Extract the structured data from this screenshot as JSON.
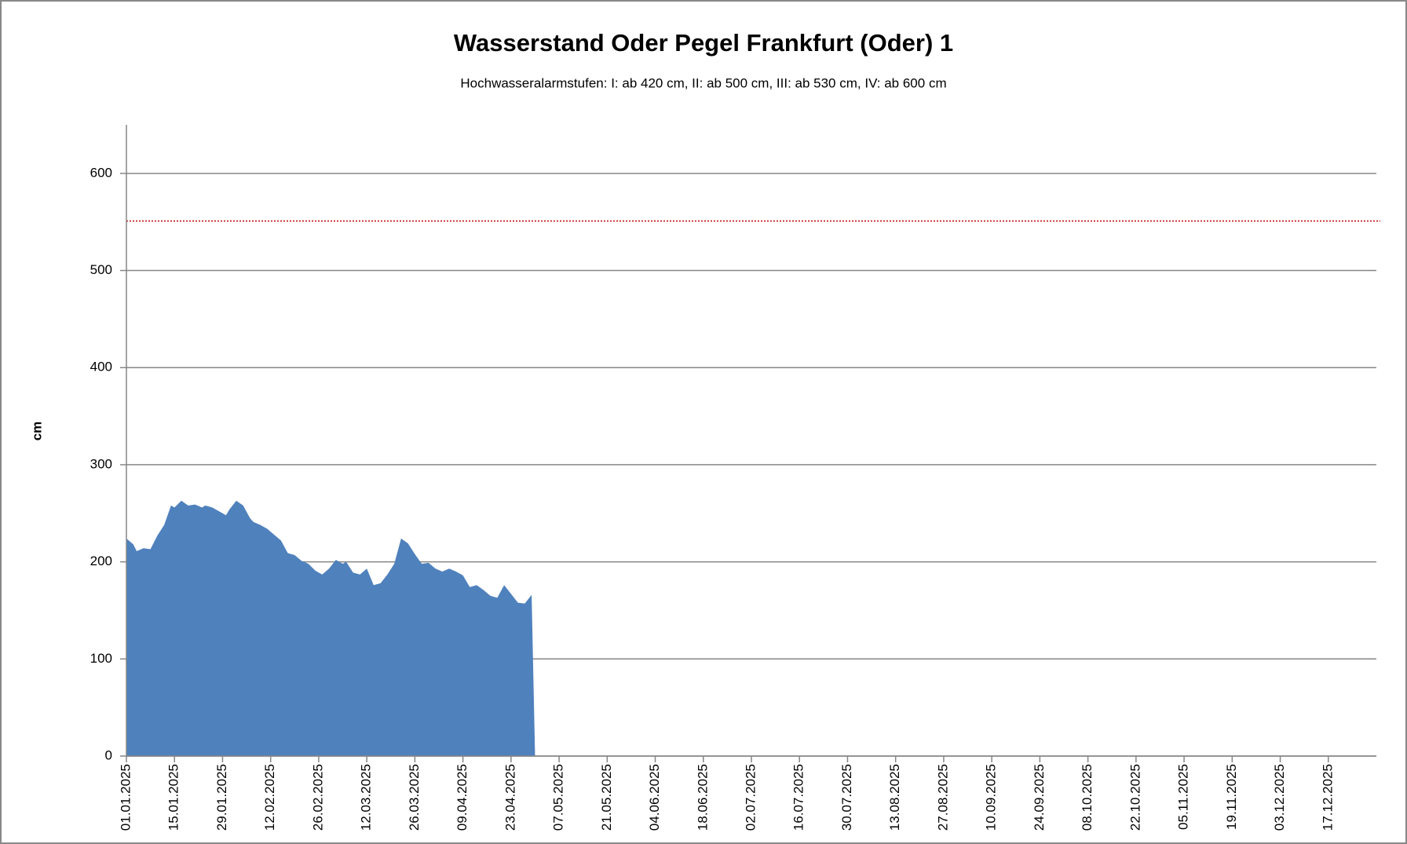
{
  "chart_data": {
    "type": "area",
    "title": "Wasserstand Oder Pegel Frankfurt (Oder) 1",
    "subtitle": "Hochwasseralarmstufen: I: ab 420 cm, II: ab 500 cm, III: ab 530 cm,  IV: ab 600 cm",
    "ylabel": "cm",
    "x": [
      "01.01.2025",
      "03.01.2025",
      "04.01.2025",
      "06.01.2025",
      "08.01.2025",
      "10.01.2025",
      "12.01.2025",
      "14.01.2025",
      "15.01.2025",
      "17.01.2025",
      "19.01.2025",
      "21.01.2025",
      "23.01.2025",
      "24.01.2025",
      "26.01.2025",
      "28.01.2025",
      "30.01.2025",
      "31.01.2025",
      "02.02.2025",
      "04.02.2025",
      "06.02.2025",
      "07.02.2025",
      "09.02.2025",
      "11.02.2025",
      "13.02.2025",
      "15.02.2025",
      "17.02.2025",
      "19.02.2025",
      "21.02.2025",
      "23.02.2025",
      "25.02.2025",
      "27.02.2025",
      "01.03.2025",
      "03.03.2025",
      "05.03.2025",
      "06.03.2025",
      "08.03.2025",
      "10.03.2025",
      "12.03.2025",
      "14.03.2025",
      "16.03.2025",
      "18.03.2025",
      "20.03.2025",
      "22.03.2025",
      "24.03.2025",
      "26.03.2025",
      "28.03.2025",
      "30.03.2025",
      "01.04.2025",
      "03.04.2025",
      "05.04.2025",
      "07.04.2025",
      "09.04.2025",
      "11.04.2025",
      "13.04.2025",
      "15.04.2025",
      "17.04.2025",
      "19.04.2025",
      "21.04.2025",
      "23.04.2025",
      "25.04.2025",
      "27.04.2025",
      "29.04.2025",
      "30.04.2025"
    ],
    "series": [
      {
        "color": "#4f81bd",
        "values": [
          224,
          218,
          211,
          214,
          213,
          227,
          238,
          258,
          256,
          263,
          258,
          259,
          256,
          258,
          256,
          252,
          248,
          254,
          263,
          258,
          245,
          241,
          238,
          234,
          228,
          222,
          209,
          207,
          201,
          198,
          191,
          187,
          193,
          202,
          198,
          200,
          189,
          187,
          193,
          176,
          178,
          187,
          198,
          224,
          219,
          208,
          198,
          199,
          193,
          190,
          193,
          190,
          186,
          174,
          176,
          171,
          165,
          163,
          176,
          167,
          158,
          157,
          166,
          0
        ]
      }
    ],
    "threshold": {
      "value": 551,
      "color": "#c00000"
    },
    "xlim": [
      "01.01.2025",
      "31.12.2025"
    ],
    "xticks": [
      "01.01.2025",
      "15.01.2025",
      "29.01.2025",
      "12.02.2025",
      "26.02.2025",
      "12.03.2025",
      "26.03.2025",
      "09.04.2025",
      "23.04.2025",
      "07.05.2025",
      "21.05.2025",
      "04.06.2025",
      "18.06.2025",
      "02.07.2025",
      "16.07.2025",
      "30.07.2025",
      "13.08.2025",
      "27.08.2025",
      "10.09.2025",
      "24.09.2025",
      "08.10.2025",
      "22.10.2025",
      "05.11.2025",
      "19.11.2025",
      "03.12.2025",
      "17.12.2025"
    ],
    "ylim": [
      0,
      650
    ],
    "yticks": [
      0,
      100,
      200,
      300,
      400,
      500,
      600
    ],
    "grid": true
  }
}
